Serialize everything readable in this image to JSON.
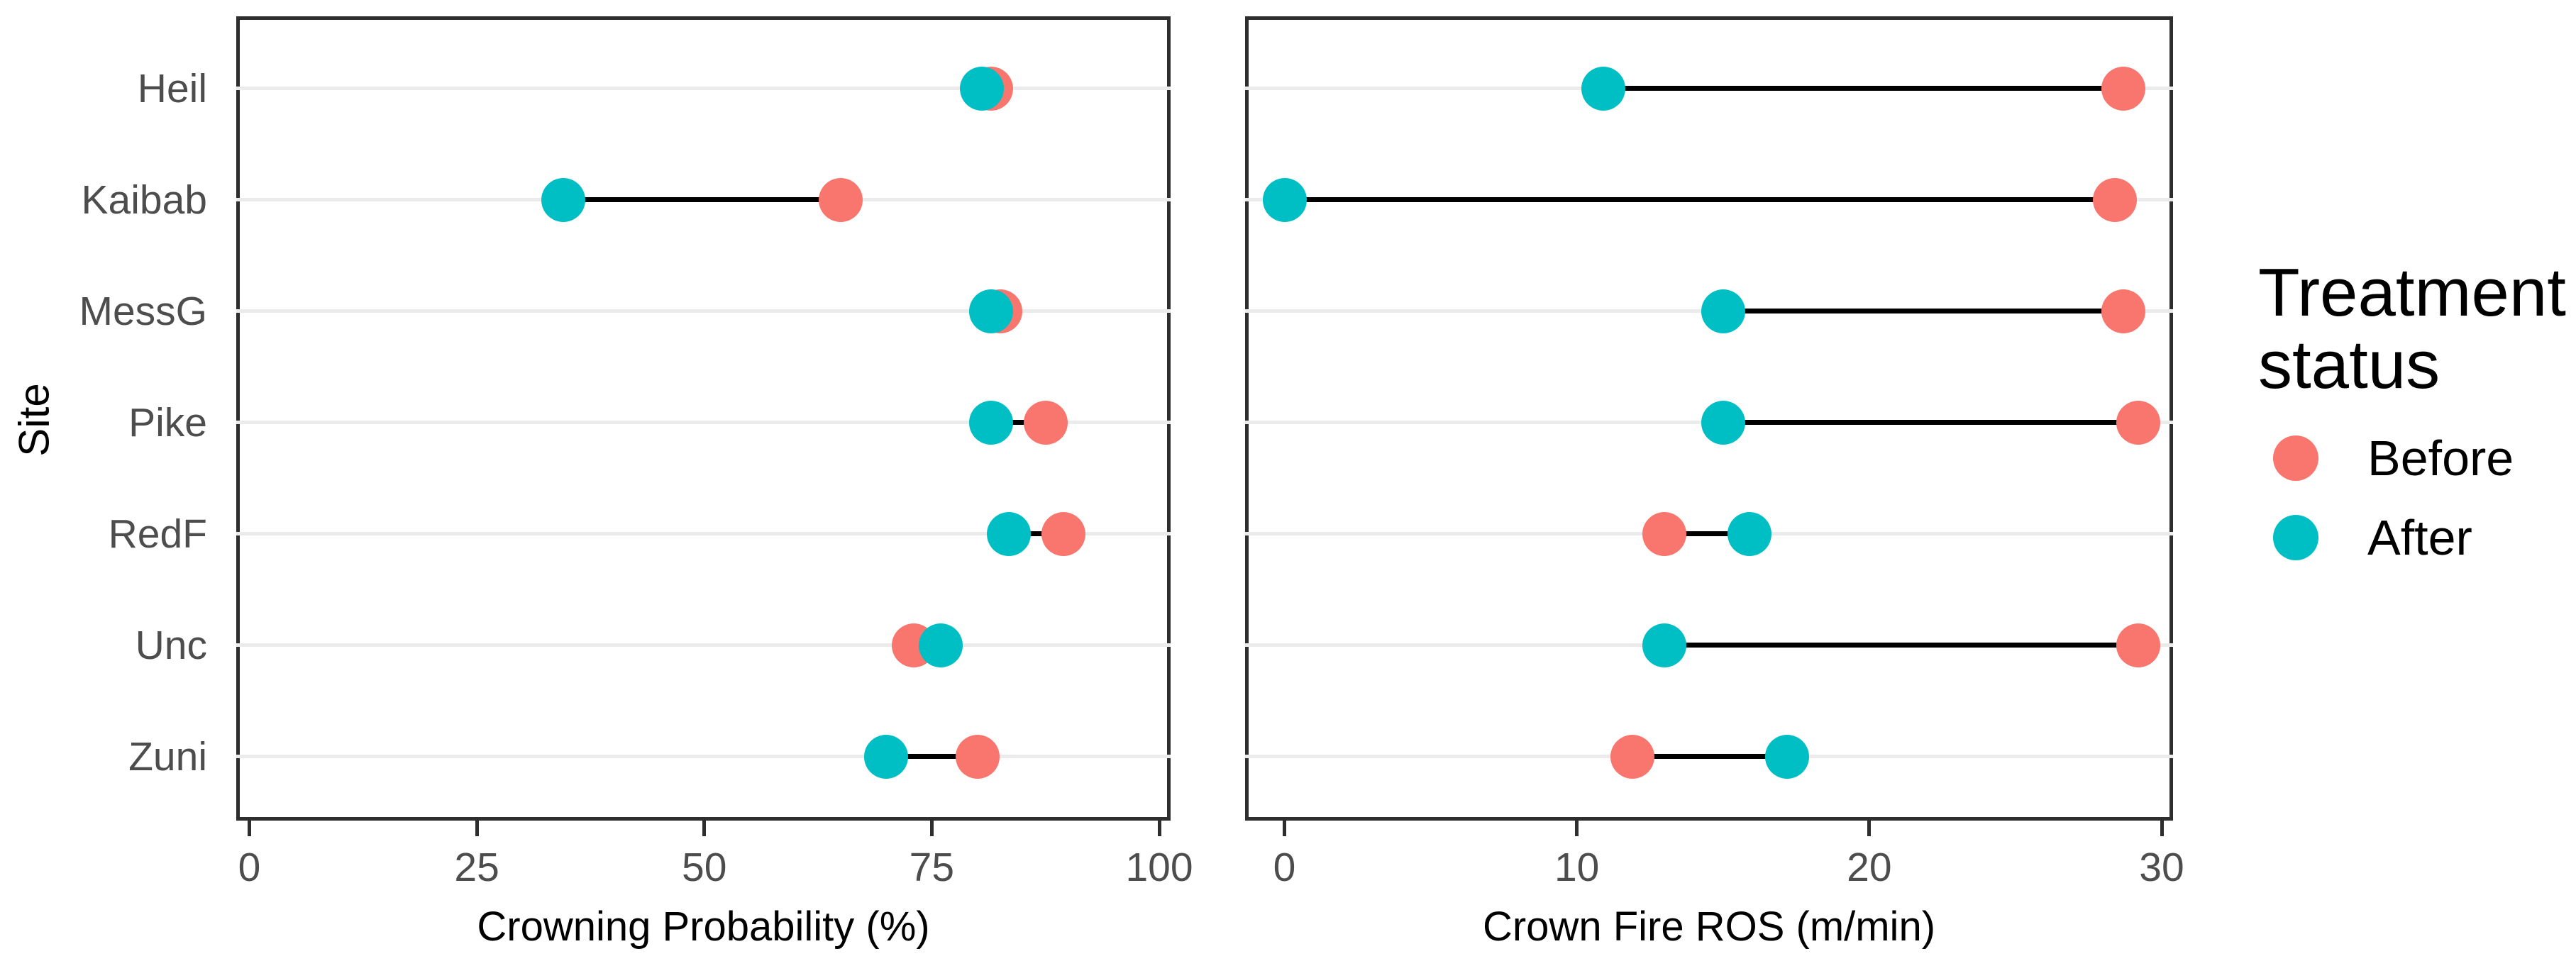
{
  "figure": {
    "background": "#ffffff",
    "description": "Two-panel before/after dumbbell dot plot of fire behavior by site"
  },
  "colors": {
    "before": "#F8766D",
    "after": "#00BFC4",
    "gridline": "#EBEBEB",
    "panel_border": "#2E2E2E",
    "connector": "#000000",
    "axis_text": "#4D4D4D",
    "title_text": "#000000"
  },
  "chart_data": [
    {
      "type": "scatter",
      "subtype": "dumbbell",
      "title": "",
      "xlabel": "Crowning Probability (%)",
      "ylabel": "Site",
      "categories": [
        "Heil",
        "Kaibab",
        "MessG",
        "Pike",
        "RedF",
        "Unc",
        "Zuni"
      ],
      "xlim": [
        0,
        100
      ],
      "x_ticks": [
        0,
        25,
        50,
        75,
        100
      ],
      "grid": "horizontal-major-only",
      "legend_position": "right",
      "series": [
        {
          "name": "Before",
          "color": "#F8766D",
          "values": [
            81.5,
            65,
            82.5,
            87.5,
            89.5,
            73,
            80
          ]
        },
        {
          "name": "After",
          "color": "#00BFC4",
          "values": [
            80.5,
            34.5,
            81.5,
            81.5,
            83.5,
            76,
            70
          ]
        }
      ]
    },
    {
      "type": "scatter",
      "subtype": "dumbbell",
      "title": "",
      "xlabel": "Crown Fire ROS (m/min)",
      "ylabel": "",
      "categories": [
        "Heil",
        "Kaibab",
        "MessG",
        "Pike",
        "RedF",
        "Unc",
        "Zuni"
      ],
      "xlim": [
        0,
        30
      ],
      "x_ticks": [
        0,
        10,
        20,
        30
      ],
      "grid": "horizontal-major-only",
      "legend_position": "right",
      "series": [
        {
          "name": "Before",
          "color": "#F8766D",
          "values": [
            28.7,
            28.4,
            28.7,
            29.2,
            13.0,
            29.2,
            11.9
          ]
        },
        {
          "name": "After",
          "color": "#00BFC4",
          "values": [
            10.9,
            0,
            15.0,
            15.0,
            15.9,
            13.0,
            17.2
          ]
        }
      ]
    }
  ],
  "legend": {
    "title": "Treatment\nstatus",
    "items": [
      {
        "label": "Before",
        "color": "#F8766D"
      },
      {
        "label": "After",
        "color": "#00BFC4"
      }
    ]
  }
}
